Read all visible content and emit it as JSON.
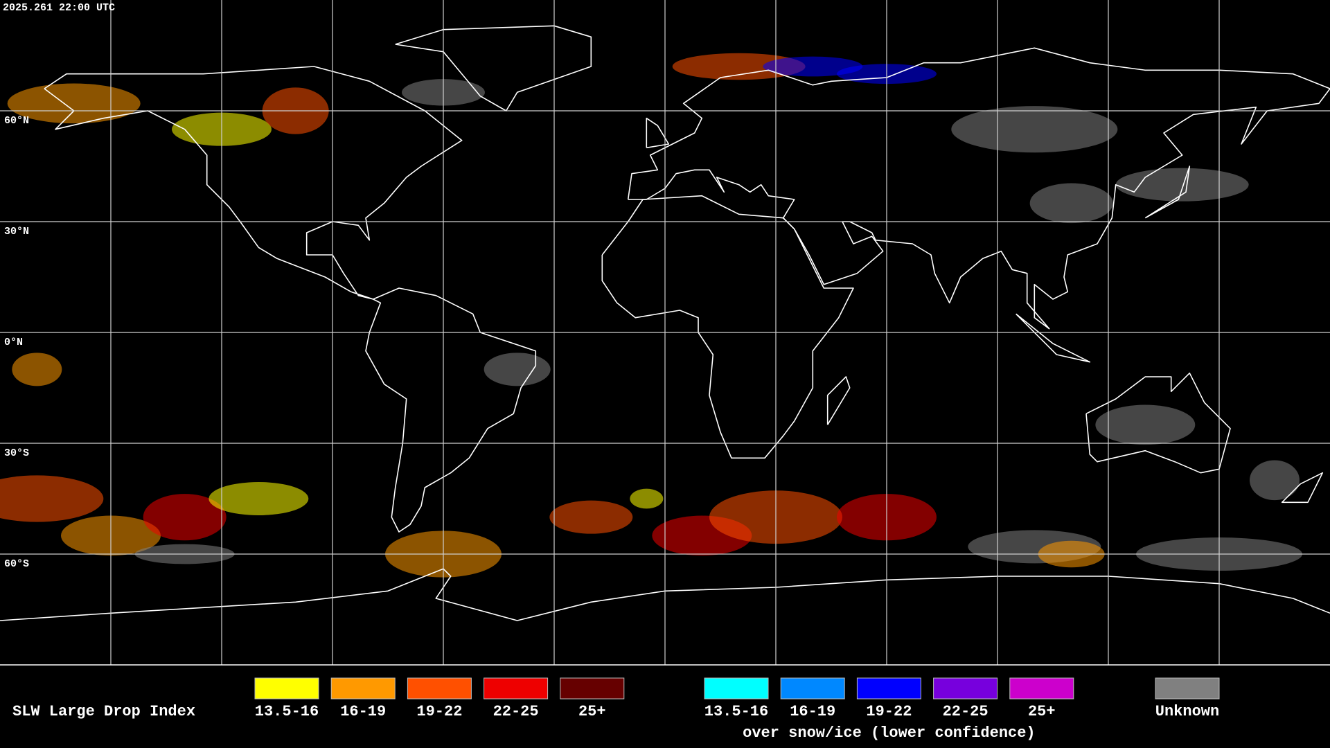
{
  "timestamp": "2025.261 22:00 UTC",
  "latitude_labels": [
    "60°N",
    "30°N",
    "0°N",
    "30°S",
    "60°S"
  ],
  "legend": {
    "title": "SLW Large Drop Index",
    "groups": [
      {
        "items": [
          {
            "label": "13.5-16",
            "color": "#ffff00"
          },
          {
            "label": "16-19",
            "color": "#ff9900"
          },
          {
            "label": "19-22",
            "color": "#ff5000"
          },
          {
            "label": "22-25",
            "color": "#ee0000"
          },
          {
            "label": "25+",
            "color": "#660000"
          }
        ]
      },
      {
        "items": [
          {
            "label": "13.5-16",
            "color": "#00ffff"
          },
          {
            "label": "16-19",
            "color": "#0088ff"
          },
          {
            "label": "19-22",
            "color": "#0000ff"
          },
          {
            "label": "22-25",
            "color": "#7700dd"
          },
          {
            "label": "25+",
            "color": "#cc00cc"
          }
        ],
        "caption": "over snow/ice (lower confidence)"
      }
    ],
    "unknown": {
      "label": "Unknown",
      "color": "#808080"
    }
  }
}
